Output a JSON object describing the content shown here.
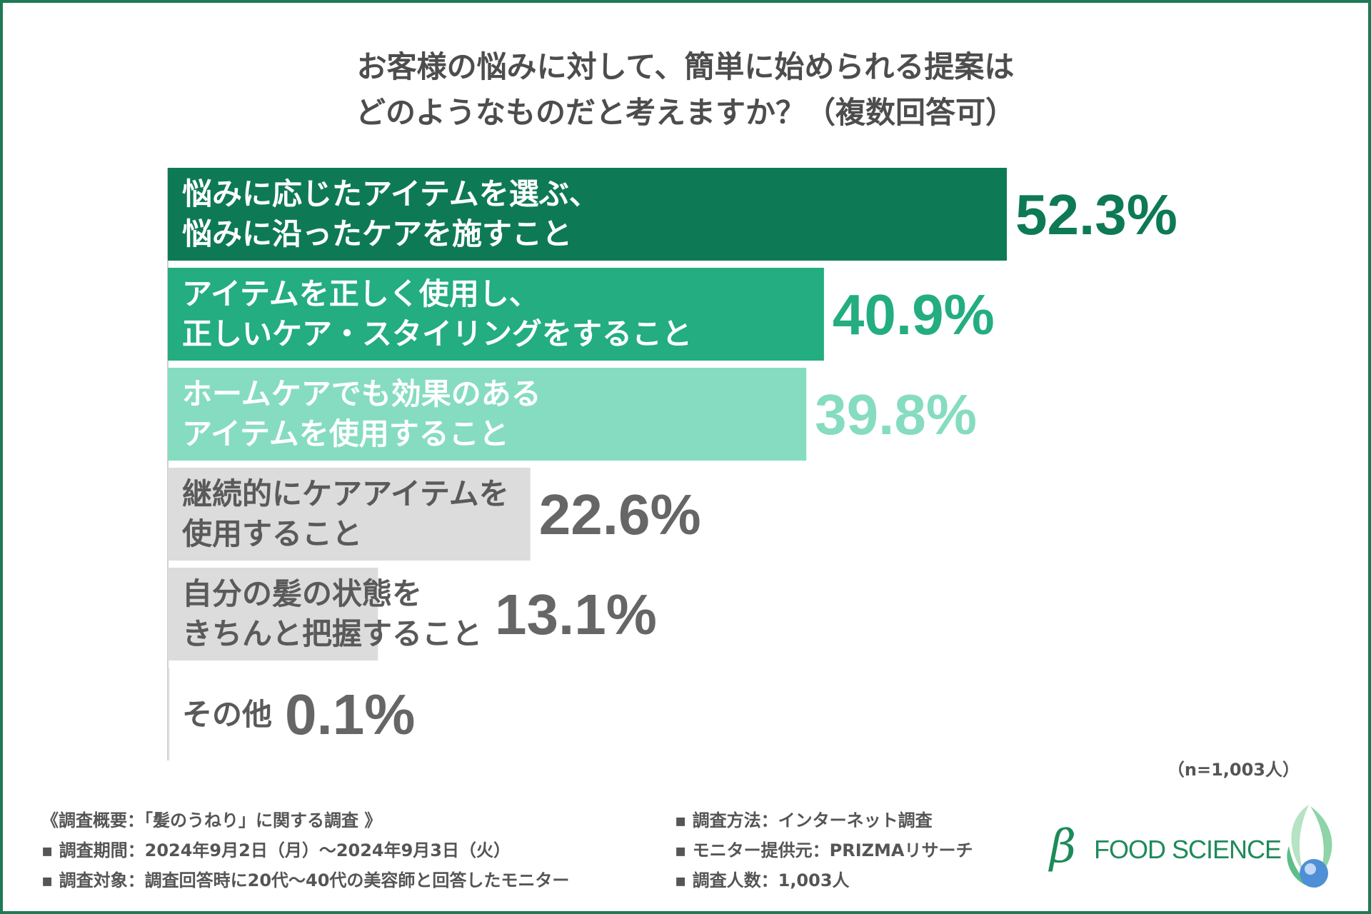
{
  "title_lines": [
    "お客様の悩みに対して、簡単に始められる提案は",
    "どのようなものだと考えますか？（複数回答可）"
  ],
  "note": "（n=1,003人）",
  "survey": {
    "heading": "《調査概要：「髪のうねり」に関する調査 》",
    "left": [
      "▪ 調査期間：2024年9月2日（月）～2024年9月3日（火）",
      "▪ 調査対象：調査回答時に20代～40代の美容師と回答したモニター"
    ],
    "right": [
      "▪ 調査方法：インターネット調査",
      "▪ モニター提供元：PRIZMAリサーチ",
      "▪ 調査人数：1,003人"
    ]
  },
  "logo": {
    "beta": "β",
    "text": "FOOD SCIENCE"
  },
  "colors": {
    "frame": "#1e7a55",
    "bar1": "#0e7a55",
    "bar2": "#23ad80",
    "bar3": "#86dcc0",
    "bar_gray": "#dcdcdc",
    "value_gray": "#666666"
  },
  "chart_data": {
    "type": "bar",
    "orientation": "horizontal",
    "categories": [
      [
        "悩みに応じたアイテムを選ぶ、",
        "悩みに沿ったケアを施すこと"
      ],
      [
        "アイテムを正しく使用し、",
        "正しいケア・スタイリングをすること"
      ],
      [
        "ホームケアでも効果のある",
        "アイテムを使用すること"
      ],
      [
        "継続的にケアアイテムを",
        "使用すること"
      ],
      [
        "自分の髪の状態を",
        "きちんと把握すること"
      ],
      [
        "その他"
      ]
    ],
    "values": [
      52.3,
      40.9,
      39.8,
      22.6,
      13.1,
      0.1
    ],
    "value_labels": [
      "52.3%",
      "40.9%",
      "39.8%",
      "22.6%",
      "13.1%",
      "0.1%"
    ],
    "unit": "%",
    "xlim": [
      0,
      60
    ],
    "grid": false,
    "legend": "none"
  }
}
